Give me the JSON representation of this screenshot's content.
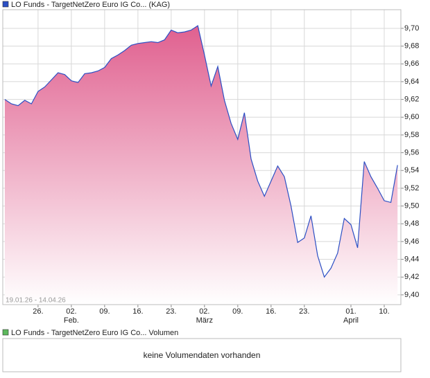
{
  "chart_data": {
    "type": "area",
    "series": [
      {
        "name": "LO Funds - TargetNetZero Euro IG Co... (KAG)",
        "color": "#2b4fc4",
        "values": [
          9.62,
          9.615,
          9.613,
          9.619,
          9.615,
          9.629,
          9.634,
          9.642,
          9.65,
          9.648,
          9.641,
          9.639,
          9.649,
          9.65,
          9.652,
          9.656,
          9.666,
          9.67,
          9.675,
          9.681,
          9.683,
          9.684,
          9.685,
          9.684,
          9.687,
          9.698,
          9.695,
          9.696,
          9.698,
          9.703,
          9.67,
          9.635,
          9.657,
          9.619,
          9.593,
          9.575,
          9.605,
          9.553,
          9.528,
          9.511,
          9.528,
          9.545,
          9.533,
          9.5,
          9.459,
          9.464,
          9.489,
          9.444,
          9.42,
          9.43,
          9.447,
          9.486,
          9.479,
          9.453,
          9.55,
          9.533,
          9.52,
          9.506,
          9.504,
          9.546
        ]
      }
    ],
    "fill_top": "#e0608f",
    "ylim": [
      9.389,
      9.721
    ],
    "yticks": [
      {
        "value": 9.4,
        "label": "9,40"
      },
      {
        "value": 9.42,
        "label": "9,42"
      },
      {
        "value": 9.44,
        "label": "9,44"
      },
      {
        "value": 9.46,
        "label": "9,46"
      },
      {
        "value": 9.48,
        "label": "9,48"
      },
      {
        "value": 9.5,
        "label": "9,50"
      },
      {
        "value": 9.52,
        "label": "9,52"
      },
      {
        "value": 9.54,
        "label": "9,54"
      },
      {
        "value": 9.56,
        "label": "9,56"
      },
      {
        "value": 9.58,
        "label": "9,58"
      },
      {
        "value": 9.6,
        "label": "9,60"
      },
      {
        "value": 9.62,
        "label": "9,62"
      },
      {
        "value": 9.64,
        "label": "9,64"
      },
      {
        "value": 9.66,
        "label": "9,66"
      },
      {
        "value": 9.68,
        "label": "9,68"
      },
      {
        "value": 9.7,
        "label": "9,70"
      }
    ],
    "xlim": [
      -0.3,
      59.5
    ],
    "xticks": [
      {
        "value": 5,
        "label": "26."
      },
      {
        "value": 10,
        "label": "02."
      },
      {
        "value": 15,
        "label": "09."
      },
      {
        "value": 20,
        "label": "16."
      },
      {
        "value": 25,
        "label": "23."
      },
      {
        "value": 30,
        "label": "02."
      },
      {
        "value": 35,
        "label": "09."
      },
      {
        "value": 40,
        "label": "16."
      },
      {
        "value": 45,
        "label": "23."
      },
      {
        "value": 52,
        "label": "01."
      },
      {
        "value": 57,
        "label": "10."
      }
    ],
    "xmonths": [
      {
        "value": 10,
        "label": "Feb."
      },
      {
        "value": 30,
        "label": "März"
      },
      {
        "value": 52,
        "label": "April"
      }
    ],
    "date_range": "19.01.26 - 14.04.26",
    "grid": true
  },
  "volume_panel": {
    "title": "LO Funds - TargetNetZero Euro IG Co... Volumen",
    "color": "#5cb85c",
    "message": "keine Volumendaten vorhanden"
  }
}
